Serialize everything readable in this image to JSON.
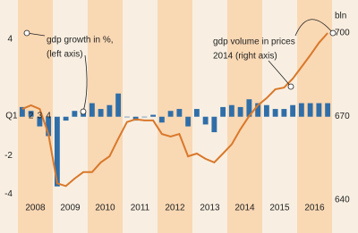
{
  "chart_data": {
    "type": "bar",
    "categories": [
      "Q1",
      "2",
      "3",
      "4",
      null,
      null,
      null,
      null,
      null,
      null,
      null,
      null,
      null,
      null,
      null,
      null,
      null,
      null,
      null,
      null,
      null,
      null,
      null,
      null,
      null,
      null,
      null,
      null,
      null,
      null,
      null,
      null,
      null,
      null,
      null,
      null
    ],
    "years": [
      "2008",
      "2009",
      "2010",
      "2011",
      "2012",
      "2013",
      "2014",
      "2015",
      "2016"
    ],
    "series": [
      {
        "type": "bar",
        "color": "#2f6ea8",
        "values": [
          0.5,
          0.3,
          -0.5,
          -1.0,
          -3.6,
          -0.2,
          0.3,
          0.3,
          0.7,
          0.4,
          0.6,
          1.2,
          0.0,
          -0.2,
          0.0,
          0.1,
          -0.3,
          0.3,
          0.4,
          -0.5,
          0.4,
          -0.4,
          -0.8,
          0.5,
          0.6,
          0.5,
          0.9,
          0.7,
          0.6,
          0.4,
          0.4,
          0.6,
          0.7,
          0.7,
          0.7,
          0.7
        ]
      },
      {
        "type": "line",
        "axis": "y2",
        "color": "#d9782a",
        "values": [
          672.7,
          674,
          672.7,
          663.7,
          646,
          645,
          647.7,
          650,
          650,
          653.5,
          655.7,
          662,
          668,
          669,
          668.6,
          668.6,
          663.7,
          662.8,
          663.7,
          655.7,
          656.7,
          654.8,
          653.5,
          656.7,
          660,
          665.4,
          670.2,
          674,
          676.6,
          679.8,
          680.4,
          683.6,
          687.8,
          692,
          696.5,
          700
        ]
      }
    ],
    "ylim": [
      -4.3,
      4.0
    ],
    "yticks": [
      -4,
      -2,
      4
    ],
    "y2lim": [
      640,
      700
    ],
    "y2ticks": [
      640,
      670,
      700
    ],
    "y2_unit": "bln",
    "annotations": [
      [
        "gdp growth in %,",
        "(left axis)"
      ],
      [
        "gdp volume in prices",
        "2014 (right axis)"
      ]
    ]
  }
}
